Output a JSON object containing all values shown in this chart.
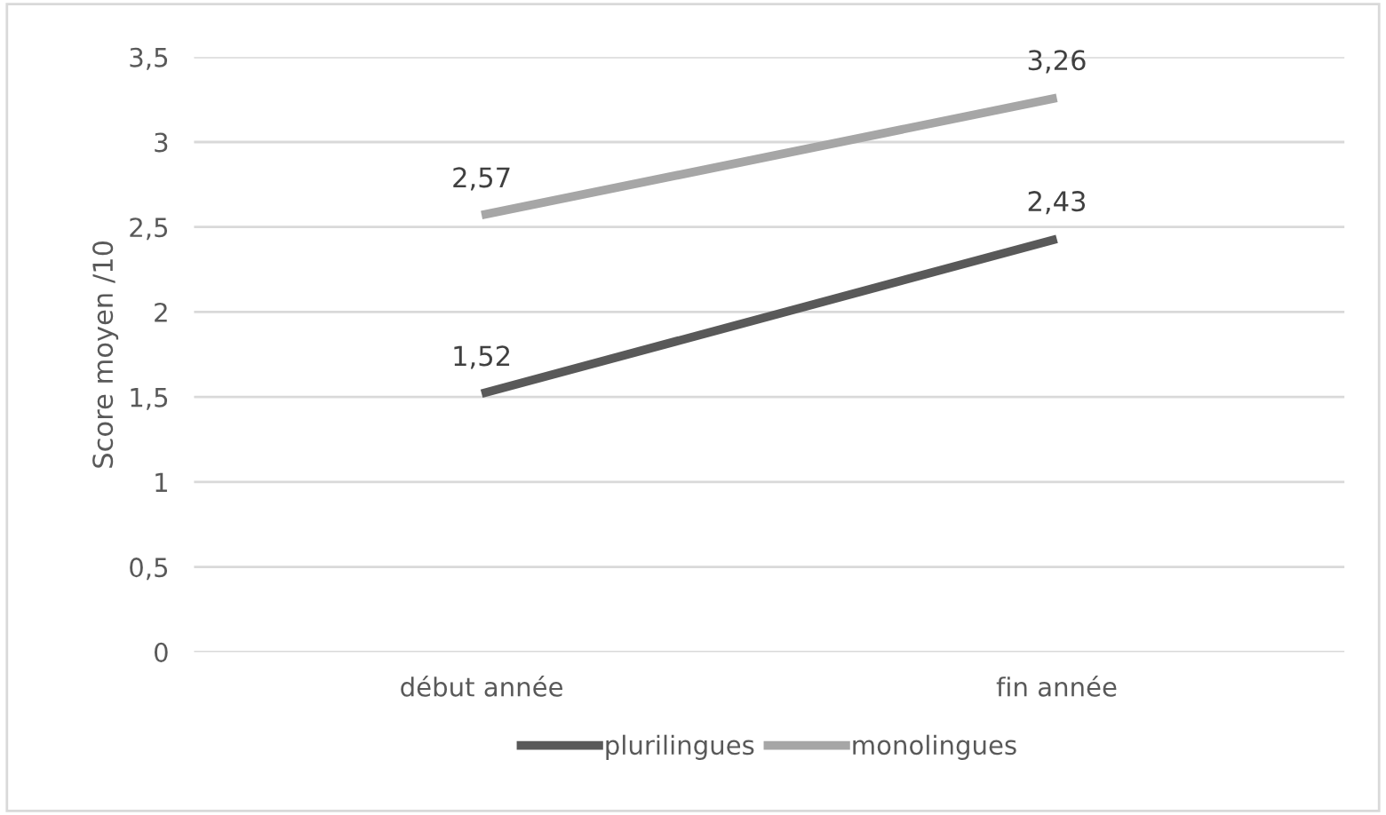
{
  "chart_data": {
    "type": "line",
    "ylabel": "Score moyen /10",
    "categories": [
      "début année",
      "fin année"
    ],
    "series": [
      {
        "name": "plurilingues",
        "color": "#595959",
        "values": [
          1.52,
          2.43
        ],
        "value_labels": [
          "1,52",
          "2,43"
        ]
      },
      {
        "name": "monolingues",
        "color": "#a6a6a6",
        "values": [
          2.57,
          3.26
        ],
        "value_labels": [
          "2,57",
          "3,26"
        ]
      }
    ],
    "ylim": [
      0,
      3.5
    ],
    "yticks": [
      0,
      {
        "value": 0.5,
        "label": "0,5"
      },
      1,
      {
        "value": 1.5,
        "label": "1,5"
      },
      2,
      {
        "value": 2.5,
        "label": "2,5"
      },
      3,
      {
        "value": 3.5,
        "label": "3,5"
      }
    ],
    "grid": "y",
    "legend": "bottom",
    "marker": "none",
    "line_style": "solid"
  }
}
